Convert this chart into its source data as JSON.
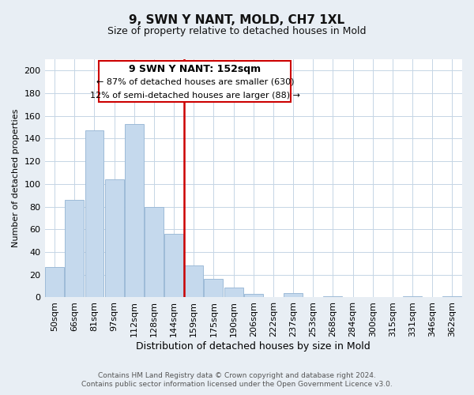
{
  "title": "9, SWN Y NANT, MOLD, CH7 1XL",
  "subtitle": "Size of property relative to detached houses in Mold",
  "xlabel": "Distribution of detached houses by size in Mold",
  "ylabel": "Number of detached properties",
  "bar_labels": [
    "50sqm",
    "66sqm",
    "81sqm",
    "97sqm",
    "112sqm",
    "128sqm",
    "144sqm",
    "159sqm",
    "175sqm",
    "190sqm",
    "206sqm",
    "222sqm",
    "237sqm",
    "253sqm",
    "268sqm",
    "284sqm",
    "300sqm",
    "315sqm",
    "331sqm",
    "346sqm",
    "362sqm"
  ],
  "bar_heights": [
    27,
    86,
    147,
    104,
    153,
    80,
    56,
    28,
    16,
    9,
    3,
    0,
    4,
    0,
    1,
    0,
    0,
    0,
    1,
    0,
    1
  ],
  "bar_color": "#c5d9ed",
  "bar_edge_color": "#9dbbd8",
  "vline_color": "#cc0000",
  "ylim": [
    0,
    210
  ],
  "yticks": [
    0,
    20,
    40,
    60,
    80,
    100,
    120,
    140,
    160,
    180,
    200
  ],
  "annotation_title": "9 SWN Y NANT: 152sqm",
  "annotation_line1": "← 87% of detached houses are smaller (630)",
  "annotation_line2": "12% of semi-detached houses are larger (88) →",
  "footer_line1": "Contains HM Land Registry data © Crown copyright and database right 2024.",
  "footer_line2": "Contains public sector information licensed under the Open Government Licence v3.0.",
  "background_color": "#e8eef4",
  "plot_background": "#ffffff",
  "grid_color": "#c5d5e5",
  "title_fontsize": 11,
  "subtitle_fontsize": 9,
  "xlabel_fontsize": 9,
  "ylabel_fontsize": 8,
  "tick_fontsize": 8,
  "footer_fontsize": 6.5
}
